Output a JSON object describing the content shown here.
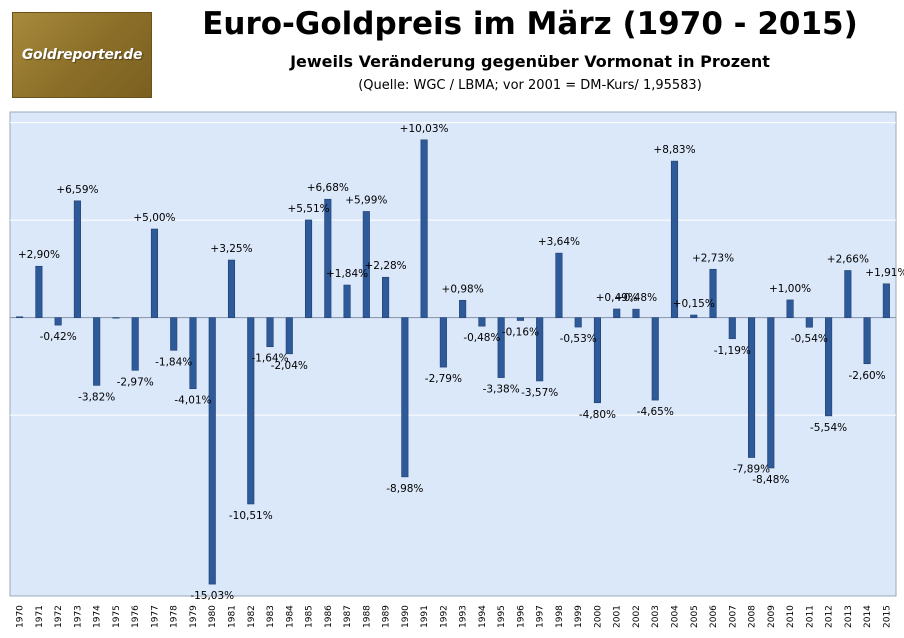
{
  "logo": {
    "text": "Goldreporter.de"
  },
  "header": {
    "title": "Euro-Goldpreis im März (1970 - 2015)",
    "subtitle": "Jeweils Veränderung gegenüber Vormonat in Prozent",
    "source": "(Quelle: WGC / LBMA; vor 2001 = DM-Kurs/ 1,95583)"
  },
  "colors": {
    "bar": "#2e5a9a",
    "plot_bg": "#dbe8fa",
    "grid": "#ffffff"
  },
  "chart_data": {
    "type": "bar",
    "title": "Euro-Goldpreis im März (1970 - 2015)",
    "subtitle": "Jeweils Veränderung gegenüber Vormonat in Prozent",
    "xlabel": "",
    "ylabel": "",
    "ylim": [
      -15.7,
      11.6
    ],
    "y_gridlines": [
      -5.5,
      0,
      5.5,
      11
    ],
    "grid": true,
    "legend": "none",
    "categories": [
      "1970",
      "1971",
      "1972",
      "1973",
      "1974",
      "1975",
      "1976",
      "1977",
      "1978",
      "1979",
      "1980",
      "1981",
      "1982",
      "1983",
      "1984",
      "1985",
      "1986",
      "1987",
      "1988",
      "1989",
      "1990",
      "1991",
      "1992",
      "1993",
      "1994",
      "1995",
      "1996",
      "1997",
      "1998",
      "1999",
      "2000",
      "2001",
      "2002",
      "2003",
      "2004",
      "2005",
      "2006",
      "2007",
      "2008",
      "2009",
      "2010",
      "2011",
      "2012",
      "2013",
      "2014",
      "2015"
    ],
    "values": [
      0.05,
      2.9,
      -0.42,
      6.59,
      -3.82,
      0,
      -2.97,
      5.0,
      -1.84,
      -4.01,
      -15.03,
      3.25,
      -10.51,
      -1.64,
      -2.04,
      5.51,
      6.68,
      1.84,
      5.99,
      2.28,
      -8.98,
      10.03,
      -2.79,
      0.98,
      -0.48,
      -3.38,
      -0.16,
      -3.57,
      3.64,
      -0.53,
      -4.8,
      0.49,
      0.48,
      -4.65,
      8.83,
      0.15,
      2.73,
      -1.19,
      -7.89,
      -8.48,
      1.0,
      -0.54,
      -5.54,
      2.66,
      -2.6,
      1.91
    ],
    "data_labels": [
      "",
      "+2,90%",
      "-0,42%",
      "+6,59%",
      "-3,82%",
      "",
      "-2,97%",
      "+5,00%",
      "-1,84%",
      "-4,01%",
      "-15,03%",
      "+3,25%",
      "-10,51%",
      "-1,64%",
      "-2,04%",
      "+5,51%",
      "+6,68%",
      "+1,84%",
      "+5,99%",
      "+2,28%",
      "-8,98%",
      "+10,03%",
      "-2,79%",
      "+0,98%",
      "-0,48%",
      "-3,38%",
      "-0,16%",
      "-3,57%",
      "+3,64%",
      "-0,53%",
      "-4,80%",
      "+0,49%",
      "+0,48%",
      "-4,65%",
      "+8,83%",
      "+0,15%",
      "+2,73%",
      "-1,19%",
      "-7,89%",
      "-8,48%",
      "+1,00%",
      "-0,54%",
      "-5,54%",
      "+2,66%",
      "-2,60%",
      "+1,91%"
    ]
  }
}
